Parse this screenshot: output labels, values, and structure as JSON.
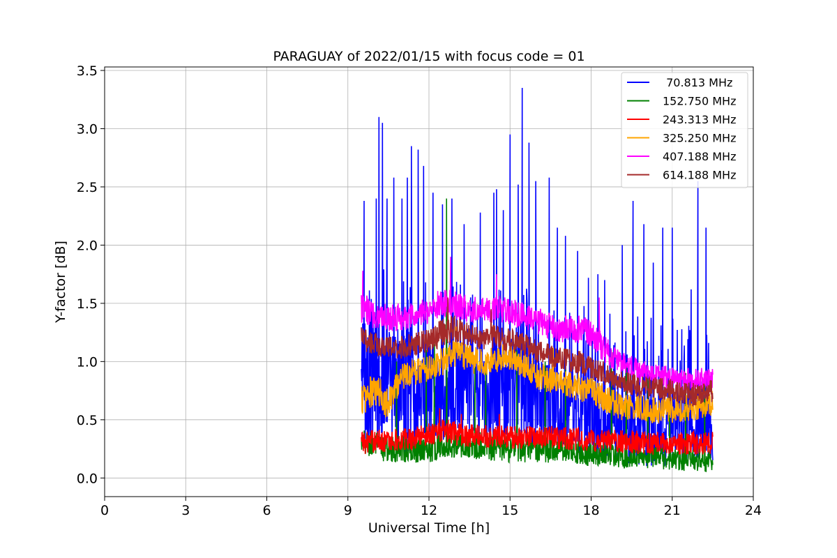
{
  "chart_data": {
    "type": "line",
    "title": "PARAGUAY of 2022/01/15 with focus code = 01",
    "xlabel": "Universal Time [h]",
    "ylabel": "Y-factor [dB]",
    "xlim": [
      0,
      24
    ],
    "ylim": [
      -0.16,
      3.53
    ],
    "x_ticks": [
      "0",
      "3",
      "6",
      "9",
      "12",
      "15",
      "18",
      "21",
      "24"
    ],
    "y_ticks": [
      "0.0",
      "0.5",
      "1.0",
      "1.5",
      "2.0",
      "2.5",
      "3.0",
      "3.5"
    ],
    "grid": true,
    "legend_position": "top-right",
    "series": [
      {
        "name": " 70.813 MHz",
        "color": "#0000ff",
        "x": [
          9.5,
          10.0,
          10.5,
          11.0,
          11.5,
          12.0,
          12.5,
          13.0,
          13.5,
          14.0,
          14.5,
          15.0,
          15.5,
          16.0,
          16.5,
          17.0,
          17.5,
          18.0,
          18.5,
          19.0,
          19.5,
          20.0,
          20.5,
          21.0,
          21.5,
          22.0,
          22.5
        ],
        "y": [
          0.8,
          0.85,
          0.8,
          0.75,
          0.72,
          0.7,
          0.72,
          0.75,
          0.72,
          0.7,
          0.68,
          0.7,
          0.72,
          0.68,
          0.62,
          0.58,
          0.52,
          0.48,
          0.45,
          0.42,
          0.42,
          0.4,
          0.4,
          0.4,
          0.42,
          0.42,
          0.45
        ],
        "spread": [
          0.55,
          0.6,
          0.5,
          0.55,
          0.5,
          0.45,
          0.45,
          0.45,
          0.4,
          0.4,
          0.45,
          0.5,
          0.5,
          0.45,
          0.4,
          0.35,
          0.35,
          0.3,
          0.3,
          0.3,
          0.3,
          0.3,
          0.3,
          0.3,
          0.3,
          0.3,
          0.3
        ],
        "peaks": [
          [
            9.6,
            2.38
          ],
          [
            10.05,
            2.4
          ],
          [
            10.15,
            3.1
          ],
          [
            10.28,
            3.05
          ],
          [
            10.45,
            2.4
          ],
          [
            10.7,
            2.58
          ],
          [
            11.0,
            2.4
          ],
          [
            11.2,
            2.58
          ],
          [
            11.35,
            2.85
          ],
          [
            11.6,
            2.82
          ],
          [
            11.8,
            2.68
          ],
          [
            12.15,
            2.45
          ],
          [
            12.5,
            2.35
          ],
          [
            12.85,
            2.4
          ],
          [
            13.3,
            2.18
          ],
          [
            13.9,
            2.28
          ],
          [
            14.4,
            2.45
          ],
          [
            14.5,
            2.48
          ],
          [
            14.75,
            2.3
          ],
          [
            15.0,
            2.95
          ],
          [
            15.3,
            2.52
          ],
          [
            15.45,
            3.35
          ],
          [
            15.7,
            2.88
          ],
          [
            15.95,
            2.55
          ],
          [
            16.45,
            2.58
          ],
          [
            16.75,
            2.15
          ],
          [
            17.05,
            2.08
          ],
          [
            17.5,
            1.95
          ],
          [
            17.9,
            1.72
          ],
          [
            18.25,
            1.75
          ],
          [
            18.5,
            1.7
          ],
          [
            19.15,
            2.0
          ],
          [
            19.55,
            2.38
          ],
          [
            19.95,
            2.18
          ],
          [
            20.3,
            1.85
          ],
          [
            20.65,
            2.15
          ],
          [
            21.0,
            2.15
          ],
          [
            21.7,
            1.62
          ],
          [
            21.95,
            2.55
          ],
          [
            22.25,
            2.15
          ]
        ]
      },
      {
        "name": "152.750 MHz",
        "color": "#008000",
        "x": [
          9.5,
          10.0,
          10.5,
          11.0,
          11.5,
          12.0,
          12.5,
          13.0,
          13.5,
          14.0,
          14.5,
          15.0,
          15.5,
          16.0,
          16.5,
          17.0,
          17.5,
          18.0,
          18.5,
          19.0,
          19.5,
          20.0,
          20.5,
          21.0,
          21.5,
          22.0,
          22.5
        ],
        "y": [
          0.3,
          0.28,
          0.25,
          0.25,
          0.25,
          0.25,
          0.3,
          0.28,
          0.28,
          0.28,
          0.25,
          0.25,
          0.25,
          0.25,
          0.25,
          0.25,
          0.22,
          0.2,
          0.2,
          0.18,
          0.18,
          0.18,
          0.18,
          0.15,
          0.15,
          0.15,
          0.15
        ],
        "spread": [
          0.12,
          0.12,
          0.12,
          0.12,
          0.12,
          0.12,
          0.12,
          0.12,
          0.12,
          0.12,
          0.12,
          0.12,
          0.12,
          0.12,
          0.12,
          0.1,
          0.1,
          0.1,
          0.1,
          0.1,
          0.1,
          0.1,
          0.1,
          0.1,
          0.1,
          0.1,
          0.1
        ],
        "peaks": [
          [
            12.65,
            2.4
          ],
          [
            10.8,
            1.0
          ],
          [
            11.9,
            1.1
          ],
          [
            12.2,
            1.15
          ],
          [
            13.7,
            1.0
          ],
          [
            14.1,
            0.95
          ],
          [
            15.25,
            1.1
          ],
          [
            16.3,
            1.0
          ],
          [
            17.05,
            0.95
          ],
          [
            18.75,
            1.1
          ],
          [
            19.3,
            0.95
          ],
          [
            20.1,
            0.85
          ],
          [
            20.9,
            0.8
          ],
          [
            21.5,
            0.9
          ],
          [
            22.2,
            0.85
          ]
        ]
      },
      {
        "name": "243.313 MHz",
        "color": "#ff0000",
        "x": [
          9.5,
          10.0,
          10.5,
          11.0,
          11.5,
          12.0,
          12.5,
          13.0,
          13.5,
          14.0,
          14.5,
          15.0,
          15.5,
          16.0,
          16.5,
          17.0,
          17.5,
          18.0,
          18.5,
          19.0,
          19.5,
          20.0,
          20.5,
          21.0,
          21.5,
          22.0,
          22.5
        ],
        "y": [
          0.3,
          0.32,
          0.32,
          0.33,
          0.35,
          0.38,
          0.4,
          0.38,
          0.36,
          0.36,
          0.36,
          0.35,
          0.35,
          0.36,
          0.35,
          0.34,
          0.33,
          0.32,
          0.32,
          0.31,
          0.31,
          0.3,
          0.3,
          0.3,
          0.3,
          0.3,
          0.3
        ],
        "spread": [
          0.1,
          0.1,
          0.1,
          0.1,
          0.1,
          0.1,
          0.12,
          0.1,
          0.1,
          0.1,
          0.1,
          0.1,
          0.1,
          0.1,
          0.1,
          0.1,
          0.1,
          0.1,
          0.1,
          0.1,
          0.1,
          0.1,
          0.1,
          0.1,
          0.1,
          0.1,
          0.1
        ],
        "peaks": [
          [
            12.4,
            0.6
          ],
          [
            13.2,
            0.55
          ],
          [
            14.6,
            0.55
          ]
        ]
      },
      {
        "name": "325.250 MHz",
        "color": "#ffa500",
        "x": [
          9.5,
          10.0,
          10.5,
          11.0,
          11.5,
          12.0,
          12.5,
          13.0,
          13.5,
          14.0,
          14.5,
          15.0,
          15.5,
          16.0,
          16.5,
          17.0,
          17.5,
          18.0,
          18.5,
          19.0,
          19.5,
          20.0,
          20.5,
          21.0,
          21.5,
          22.0,
          22.5
        ],
        "y": [
          0.68,
          0.75,
          0.65,
          0.88,
          0.92,
          0.95,
          1.0,
          1.08,
          1.02,
          1.0,
          1.02,
          1.05,
          0.98,
          0.88,
          0.85,
          0.8,
          0.78,
          0.75,
          0.68,
          0.62,
          0.6,
          0.6,
          0.58,
          0.58,
          0.6,
          0.62,
          0.65
        ],
        "spread": [
          0.15,
          0.15,
          0.15,
          0.12,
          0.12,
          0.12,
          0.12,
          0.12,
          0.12,
          0.12,
          0.12,
          0.12,
          0.12,
          0.12,
          0.12,
          0.12,
          0.12,
          0.12,
          0.12,
          0.12,
          0.12,
          0.12,
          0.12,
          0.12,
          0.12,
          0.12,
          0.12
        ],
        "peaks": [
          [
            13.0,
            1.3
          ],
          [
            15.0,
            1.25
          ],
          [
            16.6,
            1.12
          ]
        ]
      },
      {
        "name": "407.188 MHz",
        "color": "#ff00ff",
        "x": [
          9.5,
          10.0,
          10.5,
          11.0,
          11.5,
          12.0,
          12.5,
          13.0,
          13.5,
          14.0,
          14.5,
          15.0,
          15.5,
          16.0,
          16.5,
          17.0,
          17.5,
          18.0,
          18.5,
          19.0,
          19.5,
          20.0,
          20.5,
          21.0,
          21.5,
          22.0,
          22.5
        ],
        "y": [
          1.45,
          1.4,
          1.38,
          1.38,
          1.38,
          1.45,
          1.5,
          1.48,
          1.45,
          1.45,
          1.45,
          1.42,
          1.4,
          1.35,
          1.3,
          1.28,
          1.28,
          1.25,
          1.1,
          1.0,
          0.95,
          0.9,
          0.88,
          0.85,
          0.85,
          0.85,
          0.85
        ],
        "spread": [
          0.15,
          0.12,
          0.12,
          0.12,
          0.12,
          0.12,
          0.14,
          0.12,
          0.12,
          0.12,
          0.12,
          0.12,
          0.12,
          0.12,
          0.12,
          0.12,
          0.12,
          0.12,
          0.12,
          0.1,
          0.1,
          0.1,
          0.1,
          0.1,
          0.1,
          0.1,
          0.1
        ],
        "peaks": [
          [
            9.55,
            1.78
          ],
          [
            12.8,
            1.9
          ],
          [
            14.5,
            1.75
          ],
          [
            18.3,
            1.55
          ]
        ]
      },
      {
        "name": "614.188 MHz",
        "color": "#a52a2a",
        "x": [
          9.5,
          10.0,
          10.5,
          11.0,
          11.5,
          12.0,
          12.5,
          13.0,
          13.5,
          14.0,
          14.5,
          15.0,
          15.5,
          16.0,
          16.5,
          17.0,
          17.5,
          18.0,
          18.5,
          19.0,
          19.5,
          20.0,
          20.5,
          21.0,
          21.5,
          22.0,
          22.5
        ],
        "y": [
          1.2,
          1.15,
          1.12,
          1.12,
          1.15,
          1.18,
          1.25,
          1.28,
          1.22,
          1.2,
          1.22,
          1.18,
          1.15,
          1.08,
          1.05,
          1.02,
          1.0,
          0.95,
          0.9,
          0.85,
          0.8,
          0.78,
          0.78,
          0.75,
          0.72,
          0.72,
          0.75
        ],
        "spread": [
          0.1,
          0.1,
          0.1,
          0.1,
          0.1,
          0.1,
          0.12,
          0.12,
          0.1,
          0.1,
          0.1,
          0.1,
          0.1,
          0.1,
          0.1,
          0.1,
          0.1,
          0.1,
          0.1,
          0.1,
          0.1,
          0.1,
          0.1,
          0.1,
          0.1,
          0.1,
          0.1
        ],
        "peaks": [
          [
            12.7,
            1.55
          ],
          [
            14.3,
            1.45
          ]
        ]
      }
    ]
  }
}
